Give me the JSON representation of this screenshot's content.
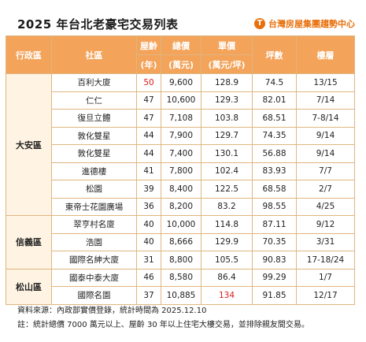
{
  "title": "2025 年台北老豪宅交易列表",
  "brand": {
    "name": "台灣房屋集團趨勢中心",
    "logo_glyph": "T",
    "tag": "",
    "color": "#e8700c"
  },
  "header": {
    "district": "行政區",
    "community": "社區",
    "age_top": "屋齡",
    "age_bottom": "(年)",
    "total_top": "總價",
    "total_bottom": "(萬元)",
    "unit_top": "單價",
    "unit_bottom": "(萬元/坪)",
    "area": "坪數",
    "floor": "樓層"
  },
  "groups": [
    {
      "district": "大安區",
      "rows": [
        {
          "community": "百利大廈",
          "age": "50",
          "total": "9,600",
          "unit": "128.9",
          "area": "74.5",
          "floor": "13/15",
          "highlight_age": true
        },
        {
          "community": "仁仁",
          "age": "47",
          "total": "10,600",
          "unit": "129.3",
          "area": "82.01",
          "floor": "7/14"
        },
        {
          "community": "復旦立體",
          "age": "47",
          "total": "7,108",
          "unit": "103.8",
          "area": "68.51",
          "floor": "7-8/14"
        },
        {
          "community": "敦化雙星",
          "age": "44",
          "total": "7,900",
          "unit": "129.7",
          "area": "74.35",
          "floor": "9/14"
        },
        {
          "community": "敦化雙星",
          "age": "44",
          "total": "7,400",
          "unit": "130.1",
          "area": "56.88",
          "floor": "9/14"
        },
        {
          "community": "進德樓",
          "age": "41",
          "total": "7,800",
          "unit": "102.4",
          "area": "83.93",
          "floor": "7/7"
        },
        {
          "community": "松園",
          "age": "39",
          "total": "8,400",
          "unit": "122.5",
          "area": "68.58",
          "floor": "2/7"
        },
        {
          "community": "東帝士花園廣場",
          "age": "36",
          "total": "8,200",
          "unit": "83.2",
          "area": "98.55",
          "floor": "4/25"
        }
      ]
    },
    {
      "district": "信義區",
      "rows": [
        {
          "community": "翠亨村名廈",
          "age": "40",
          "total": "10,000",
          "unit": "114.8",
          "area": "87.11",
          "floor": "9/12"
        },
        {
          "community": "浩園",
          "age": "40",
          "total": "8,666",
          "unit": "129.9",
          "area": "70.35",
          "floor": "3/31"
        },
        {
          "community": "國際名紳大廈",
          "age": "31",
          "total": "8,800",
          "unit": "105.5",
          "area": "90.83",
          "floor": "17-18/24"
        }
      ]
    },
    {
      "district": "松山區",
      "rows": [
        {
          "community": "國泰中泰大廈",
          "age": "46",
          "total": "8,580",
          "unit": "86.4",
          "area": "99.29",
          "floor": "1/7"
        },
        {
          "community": "國際名園",
          "age": "37",
          "total": "10,885",
          "unit": "134",
          "area": "91.85",
          "floor": "12/17",
          "highlight_unit": true
        }
      ]
    }
  ],
  "notes": {
    "source": "資料來源：內政部實價登錄，統計時間為 2025.12.10",
    "remark": "註：統計總價 7000 萬元以上、屋齡 30 年以上住宅大樓交易，並排除親友間交易。"
  },
  "colors": {
    "header_bg": "#f3a35a",
    "district_bg": "#fff3e3",
    "border": "#e0b680",
    "highlight": "#e01a1a"
  }
}
